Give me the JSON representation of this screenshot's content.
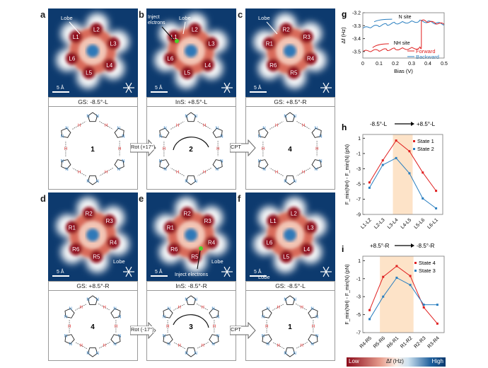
{
  "panels": {
    "a": {
      "letter": "a",
      "caption": "GS: -8.5°-L",
      "lobes": [
        "L1",
        "L2",
        "L3",
        "L4",
        "L5",
        "L6"
      ],
      "lobe_note": "Lobe",
      "scale": "5 Å",
      "number": "1"
    },
    "b": {
      "letter": "b",
      "caption": "InS: +8.5°-L",
      "lobes": [
        "L1",
        "L2",
        "L3",
        "L4",
        "L5",
        "L6"
      ],
      "lobe_note": "Lobe",
      "inject_note": "Inject elctrons",
      "scale": "5 Å",
      "number": "2"
    },
    "c": {
      "letter": "c",
      "caption": "GS: +8.5°-R",
      "lobes": [
        "R1",
        "R2",
        "R3",
        "R4",
        "R5",
        "R6"
      ],
      "lobe_note": "Lobe",
      "scale": "5 Å",
      "number": "4"
    },
    "d": {
      "letter": "d",
      "caption": "GS: +8.5°-R",
      "lobes": [
        "R1",
        "R2",
        "R3",
        "R4",
        "R5",
        "R6"
      ],
      "lobe_note": "Lobe",
      "scale": "5 Å",
      "number": "4"
    },
    "e": {
      "letter": "e",
      "caption": "InS: -8.5°-R",
      "lobes": [
        "R1",
        "R2",
        "R3",
        "R4",
        "R5",
        "R6"
      ],
      "lobe_note": "Lobe",
      "inject_note": "Inject electrons",
      "scale": "5 Å",
      "number": "3"
    },
    "f": {
      "letter": "f",
      "caption": "GS: -8.5°-L",
      "lobes": [
        "L1",
        "L2",
        "L3",
        "L4",
        "L5",
        "L6"
      ],
      "lobe_note": "Lobe",
      "scale": "5 Å",
      "number": "1"
    }
  },
  "arrows": {
    "rot_pos": "Rot (+17°)",
    "cpt_top": "CPT",
    "rot_neg": "Rot (-17°)",
    "cpt_bottom": "CPT"
  },
  "atoms": {
    "n": "N",
    "h": "H"
  },
  "colors": {
    "forward": "#e02020",
    "backward": "#2a7fc0",
    "state_red": "#e02020",
    "state_blue": "#2a7fc0",
    "stm_bg": "#0d3a6e",
    "shade": "#fde3c8"
  },
  "colorbar": {
    "low": "Low",
    "label": "Δf (Hz)",
    "high": "High"
  },
  "chart_data": [
    {
      "id": "g",
      "letter": "g",
      "type": "line",
      "xlabel": "Bias (V)",
      "ylabel": "Δf (Hz)",
      "xlim": [
        0,
        0.5
      ],
      "ylim": [
        -3.55,
        -3.2
      ],
      "xticks": [
        0,
        0.1,
        0.2,
        0.3,
        0.4,
        0.5
      ],
      "yticks": [
        -3.2,
        -3.3,
        -3.4,
        -3.5
      ],
      "annotations": [
        "N site",
        "NH site"
      ],
      "series": [
        {
          "name": "Forward",
          "x": [
            0,
            0.05,
            0.1,
            0.15,
            0.2,
            0.25,
            0.3,
            0.35,
            0.36,
            0.36,
            0.4,
            0.45,
            0.5
          ],
          "y": [
            -3.5,
            -3.495,
            -3.49,
            -3.485,
            -3.48,
            -3.478,
            -3.475,
            -3.472,
            -3.47,
            -3.26,
            -3.27,
            -3.28,
            -3.29
          ]
        },
        {
          "name": "Backward",
          "x": [
            0,
            0.05,
            0.1,
            0.15,
            0.2,
            0.25,
            0.3,
            0.35,
            0.4,
            0.45,
            0.5
          ],
          "y": [
            -3.32,
            -3.31,
            -3.3,
            -3.29,
            -3.28,
            -3.275,
            -3.27,
            -3.265,
            -3.27,
            -3.28,
            -3.29
          ]
        }
      ]
    },
    {
      "id": "h",
      "letter": "h",
      "type": "line",
      "title_left": "-8.5°-L",
      "title_right": "+8.5°-L",
      "ylabel": "F_min(NH) - F_min(N) (pN)",
      "ylim": [
        -9,
        1.5
      ],
      "yticks": [
        1,
        -1,
        -3,
        -5,
        -7,
        -9
      ],
      "categories": [
        "L1-L2",
        "L2-L3",
        "L3-L4",
        "L4-L5",
        "L5-L6",
        "L6-L1"
      ],
      "shaded": [
        "L3-L4",
        "L4-L5"
      ],
      "series": [
        {
          "name": "State 1",
          "values": [
            -4.8,
            -1.9,
            0.7,
            -0.7,
            -3.5,
            -5.9
          ]
        },
        {
          "name": "State 2",
          "values": [
            -5.5,
            -2.5,
            -1.6,
            -3.6,
            -6.9,
            -8.2
          ]
        }
      ]
    },
    {
      "id": "i",
      "letter": "i",
      "type": "line",
      "title_left": "+8.5°-R",
      "title_right": "-8.5°-R",
      "ylabel": "F_min(NH) - F_min(N) (pN)",
      "ylim": [
        -7,
        1.5
      ],
      "yticks": [
        1,
        -1,
        -3,
        -5,
        -7
      ],
      "categories": [
        "R4-R5",
        "R5-R6",
        "R6-R1",
        "R1-R2",
        "R2-R3",
        "R3-R4"
      ],
      "shaded": [
        "R5-R6",
        "R1-R2"
      ],
      "series": [
        {
          "name": "State 4",
          "values": [
            -4.5,
            -0.8,
            0.4,
            -0.7,
            -4.2,
            -6.0
          ]
        },
        {
          "name": "State 3",
          "values": [
            -5.5,
            -3.0,
            -0.9,
            -1.7,
            -3.9,
            -3.9
          ]
        }
      ]
    }
  ]
}
